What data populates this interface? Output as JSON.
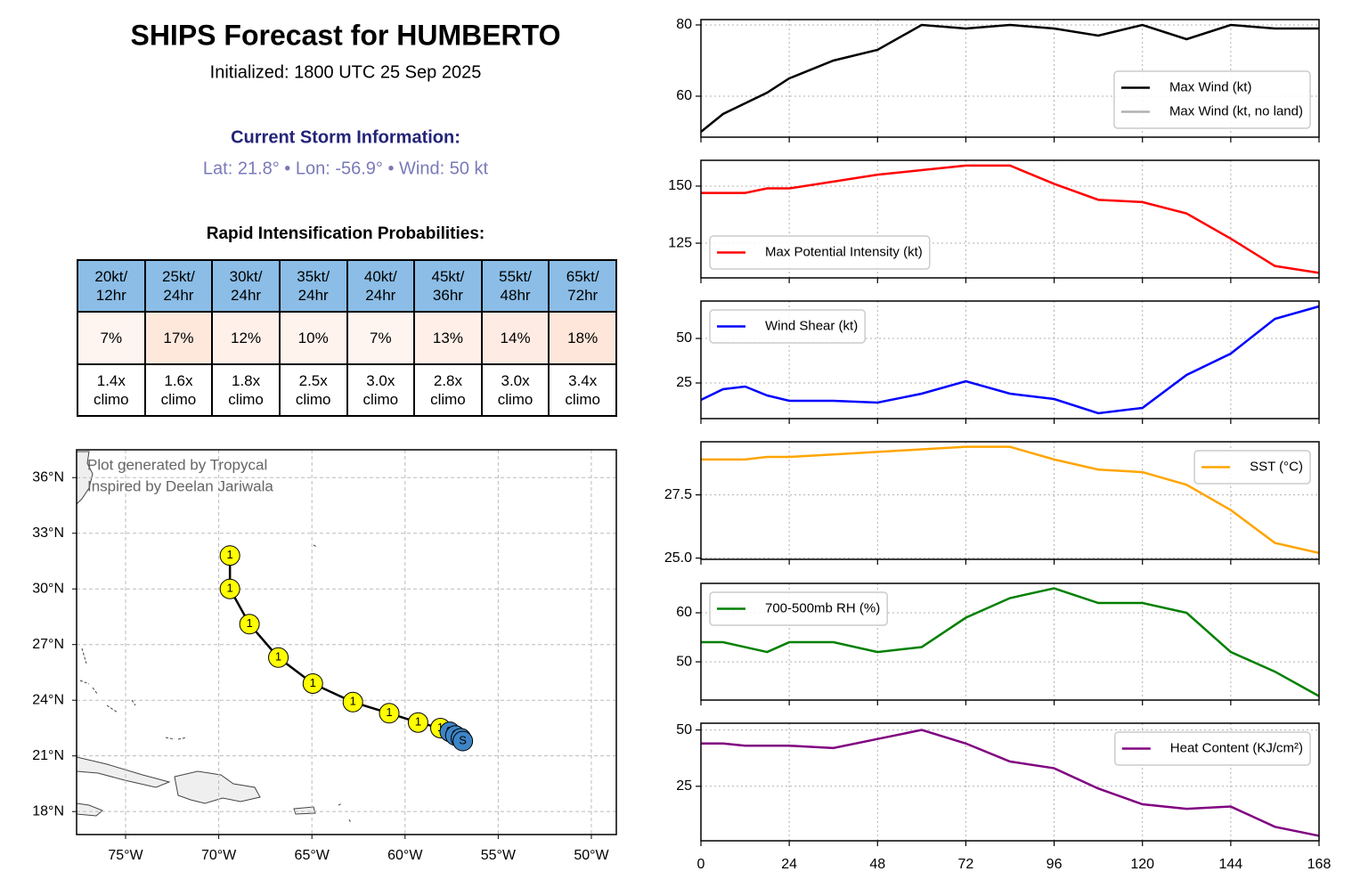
{
  "header": {
    "title": "SHIPS Forecast for HUMBERTO",
    "subtitle": "Initialized: 1800 UTC 25 Sep 2025",
    "storm_heading": "Current Storm Information:",
    "storm_info": "Lat: 21.8° • Lon: -56.9° • Wind: 50 kt",
    "ri_heading": "Rapid Intensification Probabilities:"
  },
  "table": {
    "header": [
      "20kt/\n12hr",
      "25kt/\n24hr",
      "30kt/\n24hr",
      "35kt/\n24hr",
      "40kt/\n24hr",
      "45kt/\n36hr",
      "55kt/\n48hr",
      "65kt/\n72hr"
    ],
    "probabilities": [
      "7%",
      "17%",
      "12%",
      "10%",
      "7%",
      "13%",
      "14%",
      "18%"
    ],
    "probability_colors": [
      "#fff5f0",
      "#fee8dc",
      "#fff0ea",
      "#fff3ee",
      "#fff5f0",
      "#ffefe8",
      "#feece4",
      "#fee6da"
    ],
    "climo": [
      "1.4x\nclimo",
      "1.6x\nclimo",
      "1.8x\nclimo",
      "2.5x\nclimo",
      "3.0x\nclimo",
      "2.8x\nclimo",
      "3.0x\nclimo",
      "3.4x\nclimo"
    ],
    "header_color": "#8bbde6"
  },
  "map": {
    "type": "scatter",
    "xlim": [
      -77.63,
      -48.66
    ],
    "ylim": [
      16.76,
      37.5
    ],
    "xticks": [
      {
        "value": -75,
        "label": "75°W"
      },
      {
        "value": -70,
        "label": "70°W"
      },
      {
        "value": -65,
        "label": "65°W"
      },
      {
        "value": -60,
        "label": "60°W"
      },
      {
        "value": -55,
        "label": "55°W"
      },
      {
        "value": -50,
        "label": "50°W"
      }
    ],
    "yticks": [
      {
        "value": 18,
        "label": "18°N"
      },
      {
        "value": 21,
        "label": "21°N"
      },
      {
        "value": 24,
        "label": "24°N"
      },
      {
        "value": 27,
        "label": "27°N"
      },
      {
        "value": 30,
        "label": "30°N"
      },
      {
        "value": 33,
        "label": "33°N"
      },
      {
        "value": 36,
        "label": "36°N"
      }
    ],
    "grid": true,
    "annotations": [
      "Plot generated by Tropycal",
      "Inspired by Deelan Jariwala"
    ],
    "track": {
      "x": [
        -56.9,
        -57.0,
        -57.3,
        -57.6,
        -58.1,
        -59.3,
        -60.85,
        -62.8,
        -64.95,
        -66.8,
        -68.35,
        -69.4,
        -69.4
      ],
      "y": [
        21.8,
        21.95,
        22.1,
        22.3,
        22.5,
        22.8,
        23.3,
        23.9,
        24.9,
        26.3,
        28.1,
        30.0,
        31.8
      ],
      "labels": [
        "S",
        "S",
        "S",
        "S",
        "1",
        "1",
        "1",
        "1",
        "1",
        "1",
        "1",
        "1",
        "1"
      ],
      "label_colors": {
        "S": "#3d85c6",
        "1": "#ffff00"
      }
    }
  },
  "chart_data": [
    {
      "type": "line",
      "x": [
        0,
        6,
        12,
        18,
        24,
        36,
        48,
        60,
        72,
        84,
        96,
        108,
        120,
        132,
        144,
        156,
        168
      ],
      "xlim": [
        0,
        168
      ],
      "xticks": [
        0,
        24,
        48,
        72,
        96,
        120,
        144,
        168
      ],
      "ylim": [
        48.5,
        81.5
      ],
      "yticks": [
        60,
        80
      ],
      "grid": true,
      "legend": "lower right",
      "series": [
        {
          "name": "Max Wind (kt)",
          "color": "#000000",
          "values": [
            50,
            55,
            58,
            61,
            65,
            70,
            73,
            80,
            79,
            80,
            79,
            77,
            80,
            76,
            80,
            79,
            79
          ]
        },
        {
          "name": "Max Wind (kt, no land)",
          "color": "#b0b0b0",
          "values": [
            null,
            null,
            null,
            null,
            null,
            null,
            null,
            null,
            null,
            null,
            null,
            null,
            null,
            null,
            null,
            null,
            null
          ]
        }
      ]
    },
    {
      "type": "line",
      "x": [
        0,
        6,
        12,
        18,
        24,
        36,
        48,
        60,
        72,
        84,
        96,
        108,
        120,
        132,
        144,
        156,
        168
      ],
      "xlim": [
        0,
        168
      ],
      "xticks": [
        0,
        24,
        48,
        72,
        96,
        120,
        144,
        168
      ],
      "ylim": [
        109.8,
        161.3
      ],
      "yticks": [
        125,
        150
      ],
      "grid": true,
      "legend": "lower left",
      "series": [
        {
          "name": "Max Potential Intensity (kt)",
          "color": "#ff0000",
          "values": [
            147,
            147,
            147,
            149,
            149,
            152,
            155,
            157,
            159,
            159,
            151,
            144,
            143,
            138,
            127,
            115,
            112
          ]
        }
      ]
    },
    {
      "type": "line",
      "x": [
        0,
        6,
        12,
        18,
        24,
        36,
        48,
        60,
        72,
        84,
        96,
        108,
        120,
        132,
        144,
        156,
        168
      ],
      "xlim": [
        0,
        168
      ],
      "xticks": [
        0,
        24,
        48,
        72,
        96,
        120,
        144,
        168
      ],
      "ylim": [
        5,
        71
      ],
      "yticks": [
        25,
        50
      ],
      "grid": true,
      "legend": "upper left",
      "series": [
        {
          "name": "Wind Shear (kt)",
          "color": "#0000ff",
          "values": [
            15.5,
            21.5,
            23,
            18,
            15,
            15,
            14,
            19,
            26,
            19,
            16,
            8,
            11,
            29.5,
            41.5,
            61,
            68
          ]
        }
      ]
    },
    {
      "type": "line",
      "x": [
        0,
        6,
        12,
        18,
        24,
        36,
        48,
        60,
        72,
        84,
        96,
        108,
        120,
        132,
        144,
        156,
        168
      ],
      "xlim": [
        0,
        168
      ],
      "xticks": [
        0,
        24,
        48,
        72,
        96,
        120,
        144,
        168
      ],
      "ylim": [
        24.95,
        29.6
      ],
      "yticks": [
        {
          "value": 25,
          "label": "25.0"
        },
        27.5
      ],
      "grid": true,
      "legend": "upper right",
      "series": [
        {
          "name": "SST (°C)",
          "color": "#ffa500",
          "values": [
            28.9,
            28.9,
            28.9,
            29.0,
            29.0,
            29.1,
            29.2,
            29.3,
            29.4,
            29.4,
            28.9,
            28.5,
            28.4,
            27.9,
            26.9,
            25.6,
            25.2
          ]
        }
      ]
    },
    {
      "type": "line",
      "x": [
        0,
        6,
        12,
        18,
        24,
        36,
        48,
        60,
        72,
        84,
        96,
        108,
        120,
        132,
        144,
        156,
        168
      ],
      "xlim": [
        0,
        168
      ],
      "xticks": [
        0,
        24,
        48,
        72,
        96,
        120,
        144,
        168
      ],
      "ylim": [
        42.2,
        66
      ],
      "yticks": [
        50,
        60
      ],
      "grid": true,
      "legend": "upper left",
      "series": [
        {
          "name": "700-500mb RH (%)",
          "color": "#008000",
          "values": [
            54,
            54,
            53,
            52,
            54,
            54,
            52,
            53,
            59,
            63,
            65,
            62,
            62,
            60,
            52,
            48,
            43
          ]
        }
      ]
    },
    {
      "type": "line",
      "x": [
        0,
        6,
        12,
        18,
        24,
        36,
        48,
        60,
        72,
        84,
        96,
        108,
        120,
        132,
        144,
        156,
        168
      ],
      "xlim": [
        0,
        168
      ],
      "xticks": [
        0,
        24,
        48,
        72,
        96,
        120,
        144,
        168
      ],
      "ylim": [
        0.8,
        53
      ],
      "yticks": [
        25,
        50
      ],
      "grid": true,
      "legend": "upper right",
      "series": [
        {
          "name": "Heat Content (KJ/cm²)",
          "color": "#800080",
          "values": [
            44,
            44,
            43,
            43,
            43,
            42,
            46,
            50,
            44,
            36,
            33,
            24,
            17,
            15,
            16,
            7,
            3
          ]
        }
      ]
    }
  ]
}
